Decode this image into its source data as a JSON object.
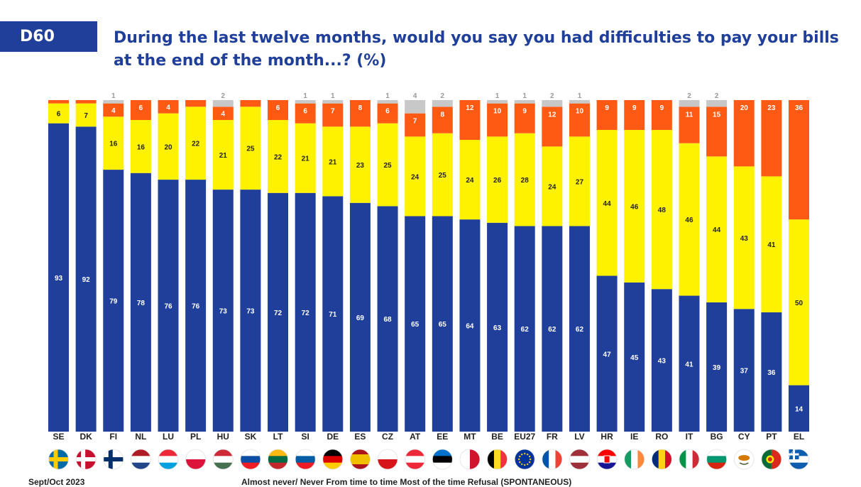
{
  "header": {
    "code": "D60",
    "title": "During the last twelve months, would you say you had difficulties to pay your bills at the end of the month...? (%)"
  },
  "footer": {
    "date": "Sept/Oct 2023",
    "legend_text": "Almost never/ Never   From time to time   Most of the time   Refusal (SPONTANEOUS)"
  },
  "chart_data": {
    "type": "bar",
    "stacked": true,
    "categories": [
      "SE",
      "DK",
      "FI",
      "NL",
      "LU",
      "PL",
      "HU",
      "SK",
      "LT",
      "SI",
      "DE",
      "ES",
      "CZ",
      "AT",
      "EE",
      "MT",
      "BE",
      "EU27",
      "FR",
      "LV",
      "HR",
      "IE",
      "RO",
      "IT",
      "BG",
      "CY",
      "PT",
      "EL"
    ],
    "series": [
      {
        "name": "Almost never/ Never",
        "color": "#1f3f9a",
        "values": [
          93,
          92,
          79,
          78,
          76,
          76,
          73,
          73,
          72,
          72,
          71,
          69,
          68,
          65,
          65,
          64,
          63,
          62,
          62,
          62,
          47,
          45,
          43,
          41,
          39,
          37,
          36,
          14
        ]
      },
      {
        "name": "From time to time",
        "color": "#fff200",
        "values": [
          6,
          7,
          16,
          16,
          20,
          22,
          21,
          25,
          22,
          21,
          21,
          23,
          25,
          24,
          25,
          24,
          26,
          28,
          24,
          27,
          44,
          46,
          48,
          46,
          44,
          43,
          41,
          50
        ]
      },
      {
        "name": "Most of the time",
        "color": "#ff5a14",
        "values": [
          1,
          1,
          4,
          6,
          4,
          2,
          4,
          2,
          6,
          6,
          7,
          8,
          6,
          7,
          8,
          12,
          10,
          9,
          12,
          10,
          9,
          9,
          9,
          11,
          15,
          20,
          23,
          36
        ]
      },
      {
        "name": "Refusal (SPONTANEOUS)",
        "color": "#c8c8c8",
        "values": [
          0,
          0,
          1,
          0,
          0,
          0,
          2,
          0,
          0,
          1,
          1,
          0,
          1,
          4,
          2,
          0,
          1,
          1,
          2,
          1,
          0,
          0,
          0,
          2,
          2,
          0,
          0,
          0
        ]
      }
    ],
    "labels": {
      "Almost never/ Never": [
        93,
        92,
        79,
        78,
        76,
        76,
        73,
        73,
        72,
        72,
        71,
        69,
        68,
        65,
        65,
        64,
        63,
        62,
        62,
        62,
        47,
        45,
        43,
        41,
        39,
        37,
        36,
        14
      ],
      "From time to time": [
        6,
        7,
        16,
        16,
        20,
        22,
        21,
        25,
        22,
        21,
        21,
        23,
        25,
        24,
        25,
        24,
        26,
        28,
        24,
        27,
        44,
        46,
        48,
        46,
        44,
        43,
        41,
        50
      ],
      "Most of the time": [
        null,
        null,
        4,
        6,
        4,
        null,
        4,
        null,
        6,
        6,
        7,
        8,
        6,
        7,
        8,
        12,
        10,
        9,
        12,
        10,
        9,
        9,
        9,
        11,
        15,
        20,
        23,
        36
      ],
      "Refusal (SPONTANEOUS)": [
        null,
        null,
        1,
        null,
        null,
        null,
        2,
        null,
        null,
        1,
        1,
        null,
        1,
        4,
        2,
        null,
        1,
        1,
        2,
        1,
        null,
        null,
        null,
        2,
        2,
        null,
        null,
        null
      ]
    },
    "ylim": [
      0,
      100
    ],
    "grid": false,
    "flags": {
      "SE": {
        "kind": "nordic",
        "bg": "#006aa7",
        "cross": "#fecc00"
      },
      "DK": {
        "kind": "nordic",
        "bg": "#c8102e",
        "cross": "#ffffff"
      },
      "FI": {
        "kind": "nordic",
        "bg": "#ffffff",
        "cross": "#002f6c"
      },
      "NL": {
        "kind": "h3",
        "colors": [
          "#ae1c28",
          "#ffffff",
          "#21468b"
        ]
      },
      "LU": {
        "kind": "h3",
        "colors": [
          "#ed2939",
          "#ffffff",
          "#00a1de"
        ]
      },
      "PL": {
        "kind": "h2",
        "colors": [
          "#ffffff",
          "#dc143c"
        ]
      },
      "HU": {
        "kind": "h3",
        "colors": [
          "#ce2939",
          "#ffffff",
          "#477050"
        ]
      },
      "SK": {
        "kind": "h3",
        "colors": [
          "#ffffff",
          "#0b4ea2",
          "#ee1c25"
        ]
      },
      "LT": {
        "kind": "h3",
        "colors": [
          "#fdb913",
          "#006a44",
          "#c1272d"
        ]
      },
      "SI": {
        "kind": "h3",
        "colors": [
          "#ffffff",
          "#005da4",
          "#ed1c24"
        ]
      },
      "DE": {
        "kind": "h3",
        "colors": [
          "#000000",
          "#dd0000",
          "#ffce00"
        ]
      },
      "ES": {
        "kind": "h3w",
        "colors": [
          "#aa151b",
          "#f1bf00",
          "#aa151b"
        ]
      },
      "CZ": {
        "kind": "h2",
        "colors": [
          "#ffffff",
          "#d7141a"
        ]
      },
      "AT": {
        "kind": "h3",
        "colors": [
          "#ed2939",
          "#ffffff",
          "#ed2939"
        ]
      },
      "EE": {
        "kind": "h3",
        "colors": [
          "#0072ce",
          "#000000",
          "#ffffff"
        ]
      },
      "MT": {
        "kind": "v2",
        "colors": [
          "#ffffff",
          "#cf142b"
        ]
      },
      "BE": {
        "kind": "v3",
        "colors": [
          "#000000",
          "#fdda24",
          "#ef3340"
        ]
      },
      "EU27": {
        "kind": "solid",
        "colors": [
          "#003399"
        ]
      },
      "FR": {
        "kind": "v3",
        "colors": [
          "#0055a4",
          "#ffffff",
          "#ef4135"
        ]
      },
      "LV": {
        "kind": "h3",
        "colors": [
          "#9e3039",
          "#ffffff",
          "#9e3039"
        ]
      },
      "HR": {
        "kind": "h3",
        "colors": [
          "#ff0000",
          "#ffffff",
          "#171796"
        ]
      },
      "IE": {
        "kind": "v3",
        "colors": [
          "#169b62",
          "#ffffff",
          "#ff883e"
        ]
      },
      "RO": {
        "kind": "v3",
        "colors": [
          "#002b7f",
          "#fcd116",
          "#ce1126"
        ]
      },
      "IT": {
        "kind": "v3",
        "colors": [
          "#009246",
          "#ffffff",
          "#ce2b37"
        ]
      },
      "BG": {
        "kind": "h3",
        "colors": [
          "#ffffff",
          "#00966e",
          "#d62612"
        ]
      },
      "CY": {
        "kind": "solid",
        "colors": [
          "#ffffff"
        ]
      },
      "PT": {
        "kind": "v2",
        "colors": [
          "#046a38",
          "#da291c"
        ]
      },
      "EL": {
        "kind": "h3",
        "colors": [
          "#0d5eaf",
          "#ffffff",
          "#0d5eaf"
        ]
      }
    }
  }
}
